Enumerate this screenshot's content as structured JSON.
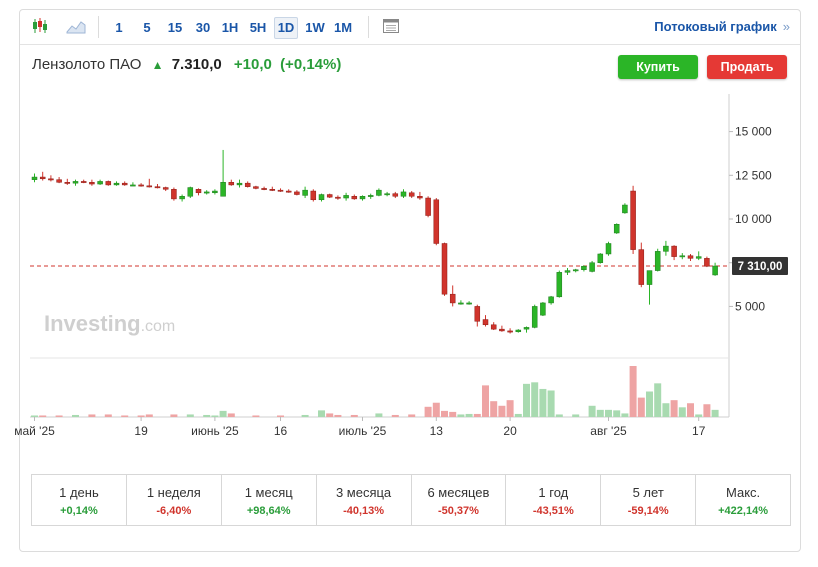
{
  "toolbar": {
    "periods": [
      "1",
      "5",
      "15",
      "30",
      "1H",
      "5H",
      "1D",
      "1W",
      "1M"
    ],
    "active_period": "1D",
    "streaming_label": "Потоковый график",
    "streaming_arrow": "»"
  },
  "header": {
    "instrument": "Лензолото ПАО",
    "price": "7.310,0",
    "change": "+10,0",
    "change_pct": "(+0,14%)"
  },
  "buttons": {
    "buy": "Купить",
    "sell": "Продать"
  },
  "watermark": {
    "brand": "Investing",
    "suffix": ".com"
  },
  "colors": {
    "up": "#2bb527",
    "down": "#d0342c",
    "vol_up": "#a8dab0",
    "vol_down": "#eea4a4",
    "current_line": "#d0342c"
  },
  "chart_data": {
    "type": "candlestick",
    "interval": "1D",
    "y_ticks": [
      5000,
      7500,
      10000,
      12500,
      15000
    ],
    "y_tick_labels": [
      "5 000",
      "",
      "10 000",
      "12 500",
      "15 000"
    ],
    "ylim": [
      2050,
      17150
    ],
    "current_price": 7310,
    "current_price_label": "7 310,00",
    "x_labels": [
      {
        "label": "май '25",
        "index": 0
      },
      {
        "label": "19",
        "index": 13
      },
      {
        "label": "июнь '25",
        "index": 22
      },
      {
        "label": "16",
        "index": 30
      },
      {
        "label": "июль '25",
        "index": 40
      },
      {
        "label": "13",
        "index": 49
      },
      {
        "label": "20",
        "index": 58
      },
      {
        "label": "авг '25",
        "index": 70
      },
      {
        "label": "17",
        "index": 81
      }
    ],
    "candles": [
      {
        "o": 12250,
        "h": 12600,
        "l": 12100,
        "c": 12400
      },
      {
        "o": 12400,
        "h": 12700,
        "l": 12200,
        "c": 12300
      },
      {
        "o": 12300,
        "h": 12500,
        "l": 12150,
        "c": 12250
      },
      {
        "o": 12250,
        "h": 12400,
        "l": 12050,
        "c": 12100
      },
      {
        "o": 12100,
        "h": 12300,
        "l": 11950,
        "c": 12050
      },
      {
        "o": 12050,
        "h": 12250,
        "l": 11900,
        "c": 12150
      },
      {
        "o": 12150,
        "h": 12250,
        "l": 12050,
        "c": 12100
      },
      {
        "o": 12100,
        "h": 12250,
        "l": 11900,
        "c": 12000
      },
      {
        "o": 12000,
        "h": 12250,
        "l": 11950,
        "c": 12150
      },
      {
        "o": 12150,
        "h": 12200,
        "l": 11900,
        "c": 11950
      },
      {
        "o": 11950,
        "h": 12150,
        "l": 11900,
        "c": 12050
      },
      {
        "o": 12050,
        "h": 12150,
        "l": 11900,
        "c": 11950
      },
      {
        "o": 11950,
        "h": 12100,
        "l": 11900,
        "c": 11950
      },
      {
        "o": 11950,
        "h": 12050,
        "l": 11850,
        "c": 11900
      },
      {
        "o": 11900,
        "h": 12300,
        "l": 11800,
        "c": 11850
      },
      {
        "o": 11850,
        "h": 12000,
        "l": 11750,
        "c": 11800
      },
      {
        "o": 11800,
        "h": 11850,
        "l": 11600,
        "c": 11700
      },
      {
        "o": 11700,
        "h": 11800,
        "l": 11050,
        "c": 11150
      },
      {
        "o": 11150,
        "h": 11400,
        "l": 11000,
        "c": 11300
      },
      {
        "o": 11300,
        "h": 11850,
        "l": 11200,
        "c": 11800
      },
      {
        "o": 11700,
        "h": 11750,
        "l": 11350,
        "c": 11500
      },
      {
        "o": 11500,
        "h": 11650,
        "l": 11400,
        "c": 11550
      },
      {
        "o": 11500,
        "h": 11700,
        "l": 11400,
        "c": 11600
      },
      {
        "o": 11300,
        "h": 13950,
        "l": 11300,
        "c": 12100
      },
      {
        "o": 12100,
        "h": 12250,
        "l": 11900,
        "c": 11950
      },
      {
        "o": 11950,
        "h": 12250,
        "l": 11800,
        "c": 12050
      },
      {
        "o": 12050,
        "h": 12150,
        "l": 11800,
        "c": 11850
      },
      {
        "o": 11850,
        "h": 11900,
        "l": 11700,
        "c": 11750
      },
      {
        "o": 11750,
        "h": 11850,
        "l": 11650,
        "c": 11700
      },
      {
        "o": 11700,
        "h": 11850,
        "l": 11600,
        "c": 11650
      },
      {
        "o": 11650,
        "h": 11750,
        "l": 11550,
        "c": 11600
      },
      {
        "o": 11600,
        "h": 11700,
        "l": 11500,
        "c": 11550
      },
      {
        "o": 11550,
        "h": 11650,
        "l": 11350,
        "c": 11400
      },
      {
        "o": 11350,
        "h": 11850,
        "l": 11200,
        "c": 11650
      },
      {
        "o": 11600,
        "h": 11700,
        "l": 11000,
        "c": 11100
      },
      {
        "o": 11100,
        "h": 11450,
        "l": 11000,
        "c": 11400
      },
      {
        "o": 11400,
        "h": 11450,
        "l": 11200,
        "c": 11250
      },
      {
        "o": 11250,
        "h": 11350,
        "l": 11100,
        "c": 11200
      },
      {
        "o": 11200,
        "h": 11500,
        "l": 11050,
        "c": 11350
      },
      {
        "o": 11300,
        "h": 11400,
        "l": 11100,
        "c": 11150
      },
      {
        "o": 11150,
        "h": 11350,
        "l": 11050,
        "c": 11300
      },
      {
        "o": 11300,
        "h": 11450,
        "l": 11150,
        "c": 11350
      },
      {
        "o": 11350,
        "h": 11750,
        "l": 11300,
        "c": 11650
      },
      {
        "o": 11400,
        "h": 11550,
        "l": 11300,
        "c": 11450
      },
      {
        "o": 11450,
        "h": 11550,
        "l": 11200,
        "c": 11300
      },
      {
        "o": 11300,
        "h": 11700,
        "l": 11200,
        "c": 11550
      },
      {
        "o": 11500,
        "h": 11600,
        "l": 11200,
        "c": 11300
      },
      {
        "o": 11300,
        "h": 11550,
        "l": 11100,
        "c": 11200
      },
      {
        "o": 11200,
        "h": 11300,
        "l": 10100,
        "c": 10200
      },
      {
        "o": 11100,
        "h": 11200,
        "l": 8500,
        "c": 8600
      },
      {
        "o": 8600,
        "h": 8650,
        "l": 5600,
        "c": 5700
      },
      {
        "o": 5700,
        "h": 6200,
        "l": 5000,
        "c": 5200
      },
      {
        "o": 5200,
        "h": 5350,
        "l": 5100,
        "c": 5200
      },
      {
        "o": 5200,
        "h": 5300,
        "l": 5100,
        "c": 5200
      },
      {
        "o": 5000,
        "h": 5100,
        "l": 3850,
        "c": 4150
      },
      {
        "o": 4250,
        "h": 4500,
        "l": 3850,
        "c": 3950
      },
      {
        "o": 3950,
        "h": 4100,
        "l": 3650,
        "c": 3700
      },
      {
        "o": 3700,
        "h": 3900,
        "l": 3550,
        "c": 3600
      },
      {
        "o": 3600,
        "h": 3750,
        "l": 3450,
        "c": 3550
      },
      {
        "o": 3550,
        "h": 3700,
        "l": 3500,
        "c": 3650
      },
      {
        "o": 3700,
        "h": 3850,
        "l": 3500,
        "c": 3800
      },
      {
        "o": 3800,
        "h": 5100,
        "l": 3750,
        "c": 5000
      },
      {
        "o": 4500,
        "h": 5250,
        "l": 4450,
        "c": 5200
      },
      {
        "o": 5200,
        "h": 5600,
        "l": 5100,
        "c": 5550
      },
      {
        "o": 5550,
        "h": 7050,
        "l": 5500,
        "c": 6950
      },
      {
        "o": 6950,
        "h": 7200,
        "l": 6800,
        "c": 7050
      },
      {
        "o": 7050,
        "h": 7150,
        "l": 6950,
        "c": 7100
      },
      {
        "o": 7100,
        "h": 7350,
        "l": 7000,
        "c": 7300
      },
      {
        "o": 7000,
        "h": 7600,
        "l": 6950,
        "c": 7500
      },
      {
        "o": 7500,
        "h": 8050,
        "l": 7450,
        "c": 8000
      },
      {
        "o": 8000,
        "h": 8700,
        "l": 7900,
        "c": 8600
      },
      {
        "o": 9200,
        "h": 9750,
        "l": 9150,
        "c": 9700
      },
      {
        "o": 10350,
        "h": 10900,
        "l": 10300,
        "c": 10800
      },
      {
        "o": 11600,
        "h": 11900,
        "l": 8000,
        "c": 8250
      },
      {
        "o": 8250,
        "h": 8650,
        "l": 6100,
        "c": 6250
      },
      {
        "o": 6250,
        "h": 7050,
        "l": 5100,
        "c": 7050
      },
      {
        "o": 7050,
        "h": 8300,
        "l": 7000,
        "c": 8150
      },
      {
        "o": 8150,
        "h": 8750,
        "l": 7900,
        "c": 8450
      },
      {
        "o": 8450,
        "h": 8500,
        "l": 7650,
        "c": 7850
      },
      {
        "o": 7850,
        "h": 8050,
        "l": 7700,
        "c": 7900
      },
      {
        "o": 7900,
        "h": 8000,
        "l": 7600,
        "c": 7750
      },
      {
        "o": 7750,
        "h": 8150,
        "l": 7650,
        "c": 7850
      },
      {
        "o": 7750,
        "h": 7850,
        "l": 7250,
        "c": 7300
      },
      {
        "o": 6800,
        "h": 7500,
        "l": 6750,
        "c": 7310
      }
    ],
    "volumes": [
      {
        "i": 0,
        "v": 3
      },
      {
        "i": 1,
        "v": 3
      },
      {
        "i": 3,
        "v": 3
      },
      {
        "i": 5,
        "v": 4
      },
      {
        "i": 7,
        "v": 5
      },
      {
        "i": 9,
        "v": 5
      },
      {
        "i": 11,
        "v": 3
      },
      {
        "i": 13,
        "v": 3
      },
      {
        "i": 14,
        "v": 5
      },
      {
        "i": 17,
        "v": 5
      },
      {
        "i": 19,
        "v": 5
      },
      {
        "i": 21,
        "v": 4
      },
      {
        "i": 22,
        "v": 3
      },
      {
        "i": 23,
        "v": 12
      },
      {
        "i": 24,
        "v": 7
      },
      {
        "i": 27,
        "v": 3
      },
      {
        "i": 30,
        "v": 3
      },
      {
        "i": 33,
        "v": 4
      },
      {
        "i": 35,
        "v": 13
      },
      {
        "i": 36,
        "v": 7
      },
      {
        "i": 37,
        "v": 4
      },
      {
        "i": 39,
        "v": 4
      },
      {
        "i": 42,
        "v": 7
      },
      {
        "i": 44,
        "v": 4
      },
      {
        "i": 46,
        "v": 5
      },
      {
        "i": 48,
        "v": 20
      },
      {
        "i": 49,
        "v": 28
      },
      {
        "i": 50,
        "v": 12
      },
      {
        "i": 51,
        "v": 10
      },
      {
        "i": 52,
        "v": 5
      },
      {
        "i": 53,
        "v": 6
      },
      {
        "i": 54,
        "v": 6
      },
      {
        "i": 55,
        "v": 62
      },
      {
        "i": 56,
        "v": 31
      },
      {
        "i": 57,
        "v": 22
      },
      {
        "i": 58,
        "v": 33
      },
      {
        "i": 59,
        "v": 6
      },
      {
        "i": 60,
        "v": 65
      },
      {
        "i": 61,
        "v": 68
      },
      {
        "i": 62,
        "v": 55
      },
      {
        "i": 63,
        "v": 52
      },
      {
        "i": 64,
        "v": 5
      },
      {
        "i": 66,
        "v": 5
      },
      {
        "i": 68,
        "v": 22
      },
      {
        "i": 69,
        "v": 14
      },
      {
        "i": 70,
        "v": 14
      },
      {
        "i": 71,
        "v": 13
      },
      {
        "i": 72,
        "v": 7
      },
      {
        "i": 73,
        "v": 100
      },
      {
        "i": 74,
        "v": 38
      },
      {
        "i": 75,
        "v": 50
      },
      {
        "i": 76,
        "v": 66
      },
      {
        "i": 77,
        "v": 27
      },
      {
        "i": 78,
        "v": 33
      },
      {
        "i": 79,
        "v": 19
      },
      {
        "i": 80,
        "v": 27
      },
      {
        "i": 81,
        "v": 5
      },
      {
        "i": 82,
        "v": 25
      },
      {
        "i": 83,
        "v": 14
      }
    ]
  },
  "performance": [
    {
      "label": "1 день",
      "value": "+0,14%",
      "dir": "pos"
    },
    {
      "label": "1 неделя",
      "value": "-6,40%",
      "dir": "neg"
    },
    {
      "label": "1 месяц",
      "value": "+98,64%",
      "dir": "pos"
    },
    {
      "label": "3 месяца",
      "value": "-40,13%",
      "dir": "neg"
    },
    {
      "label": "6 месяцев",
      "value": "-50,37%",
      "dir": "neg"
    },
    {
      "label": "1 год",
      "value": "-43,51%",
      "dir": "neg"
    },
    {
      "label": "5 лет",
      "value": "-59,14%",
      "dir": "neg"
    },
    {
      "label": "Макс.",
      "value": "+422,14%",
      "dir": "pos"
    }
  ]
}
